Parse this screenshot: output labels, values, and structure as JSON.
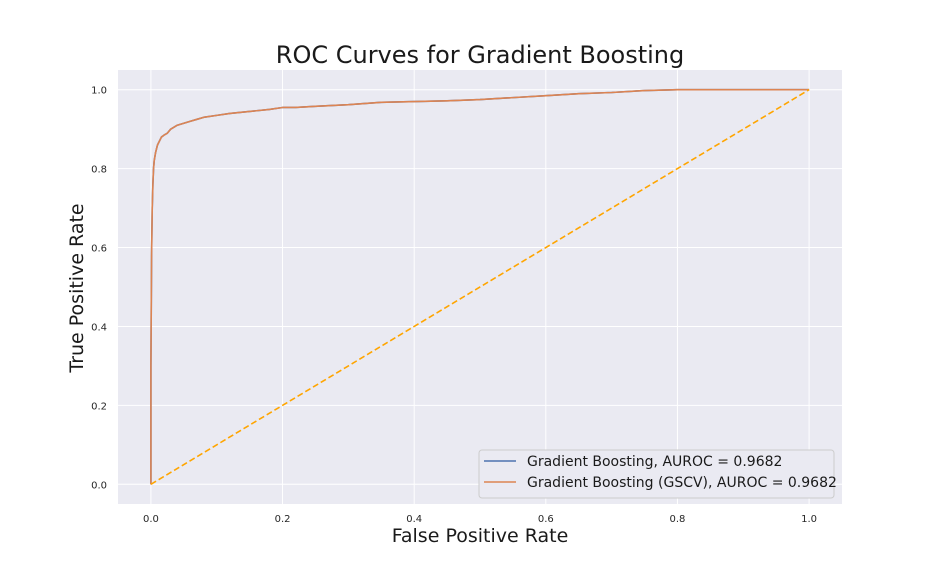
{
  "chart_data": {
    "type": "line",
    "title": "ROC Curves for Gradient Boosting",
    "xlabel": "False Positive Rate",
    "ylabel": "True Positive Rate",
    "xlim": [
      -0.05,
      1.05
    ],
    "ylim": [
      -0.05,
      1.05
    ],
    "xticks": [
      0.0,
      0.2,
      0.4,
      0.6,
      0.8,
      1.0
    ],
    "yticks": [
      0.0,
      0.2,
      0.4,
      0.6,
      0.8,
      1.0
    ],
    "xtick_labels": [
      "0.0",
      "0.2",
      "0.4",
      "0.6",
      "0.8",
      "1.0"
    ],
    "ytick_labels": [
      "0.0",
      "0.2",
      "0.4",
      "0.6",
      "0.8",
      "1.0"
    ],
    "grid": true,
    "legend_position": "lower-right",
    "series": [
      {
        "name": "Gradient Boosting, AUROC = 0.9682",
        "color": "#4c72b0",
        "style": "solid",
        "x": [
          0.0,
          0.0,
          0.001,
          0.002,
          0.003,
          0.004,
          0.005,
          0.007,
          0.01,
          0.013,
          0.016,
          0.02,
          0.025,
          0.03,
          0.04,
          0.05,
          0.06,
          0.07,
          0.08,
          0.1,
          0.12,
          0.15,
          0.18,
          0.2,
          0.22,
          0.25,
          0.3,
          0.35,
          0.4,
          0.45,
          0.5,
          0.55,
          0.6,
          0.65,
          0.7,
          0.75,
          0.8,
          0.9,
          1.0
        ],
        "y": [
          0.0,
          0.3,
          0.58,
          0.7,
          0.76,
          0.8,
          0.82,
          0.84,
          0.86,
          0.87,
          0.88,
          0.885,
          0.89,
          0.9,
          0.91,
          0.915,
          0.92,
          0.925,
          0.93,
          0.935,
          0.94,
          0.945,
          0.95,
          0.955,
          0.955,
          0.958,
          0.962,
          0.968,
          0.97,
          0.972,
          0.975,
          0.98,
          0.985,
          0.99,
          0.993,
          0.998,
          1.0,
          1.0,
          1.0
        ]
      },
      {
        "name": "Gradient Boosting (GSCV), AUROC = 0.9682",
        "color": "#dd8452",
        "style": "solid",
        "x": [
          0.0,
          0.0,
          0.001,
          0.002,
          0.003,
          0.004,
          0.005,
          0.007,
          0.01,
          0.013,
          0.016,
          0.02,
          0.025,
          0.03,
          0.04,
          0.05,
          0.06,
          0.07,
          0.08,
          0.1,
          0.12,
          0.15,
          0.18,
          0.2,
          0.22,
          0.25,
          0.3,
          0.35,
          0.4,
          0.45,
          0.5,
          0.55,
          0.6,
          0.65,
          0.7,
          0.75,
          0.8,
          0.9,
          1.0
        ],
        "y": [
          0.0,
          0.3,
          0.58,
          0.7,
          0.76,
          0.8,
          0.82,
          0.84,
          0.86,
          0.87,
          0.88,
          0.885,
          0.89,
          0.9,
          0.91,
          0.915,
          0.92,
          0.925,
          0.93,
          0.935,
          0.94,
          0.945,
          0.95,
          0.955,
          0.955,
          0.958,
          0.962,
          0.968,
          0.97,
          0.972,
          0.975,
          0.98,
          0.985,
          0.99,
          0.993,
          0.998,
          1.0,
          1.0,
          1.0
        ]
      },
      {
        "color": "#ffa500",
        "style": "dashed",
        "x": [
          0.0,
          1.0
        ],
        "y": [
          0.0,
          1.0
        ]
      }
    ]
  },
  "style": {
    "plot_background": "#eaeaf2",
    "grid_color": "#ffffff",
    "legend_background": "#eaeaf2",
    "legend_border": "#cccccc"
  }
}
